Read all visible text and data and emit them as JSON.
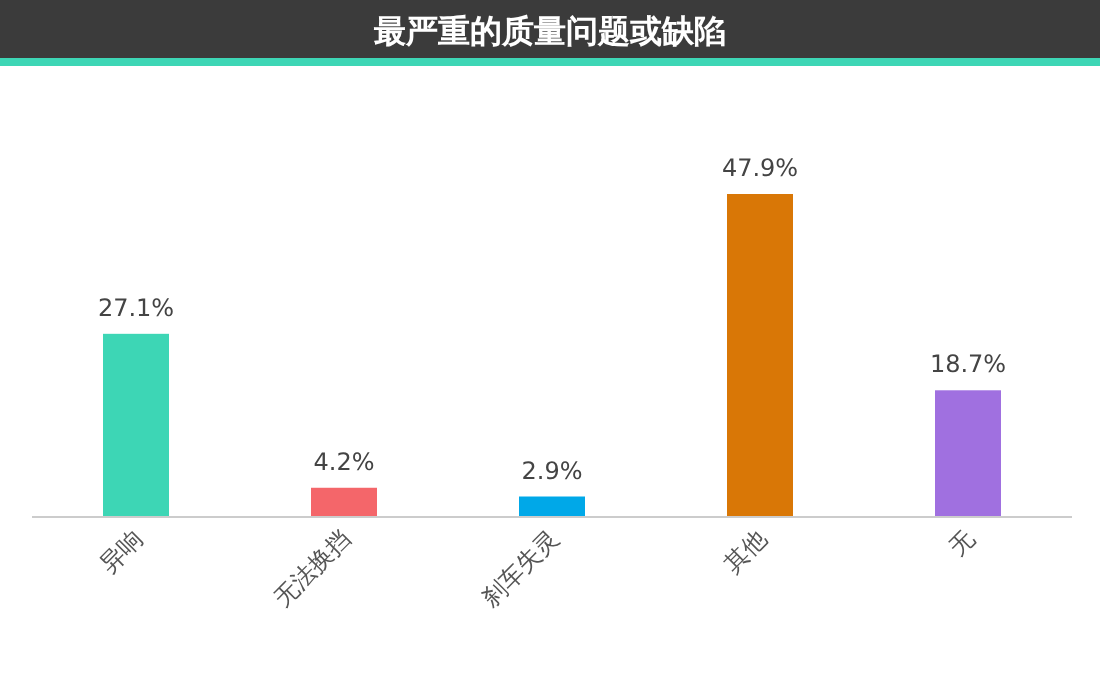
{
  "chart_data": {
    "type": "bar",
    "title": "最严重的质量问题或缺陷",
    "categories": [
      "异响",
      "无法换挡",
      "刹车失灵",
      "其他",
      "无"
    ],
    "values": [
      27.1,
      4.2,
      2.9,
      47.9,
      18.7
    ],
    "colors": [
      "#3dd6b5",
      "#f4666a",
      "#00a8e8",
      "#d97706",
      "#a070e0"
    ],
    "value_labels": [
      "27.1%",
      "4.2%",
      "2.9%",
      "47.9%",
      "18.7%"
    ]
  }
}
